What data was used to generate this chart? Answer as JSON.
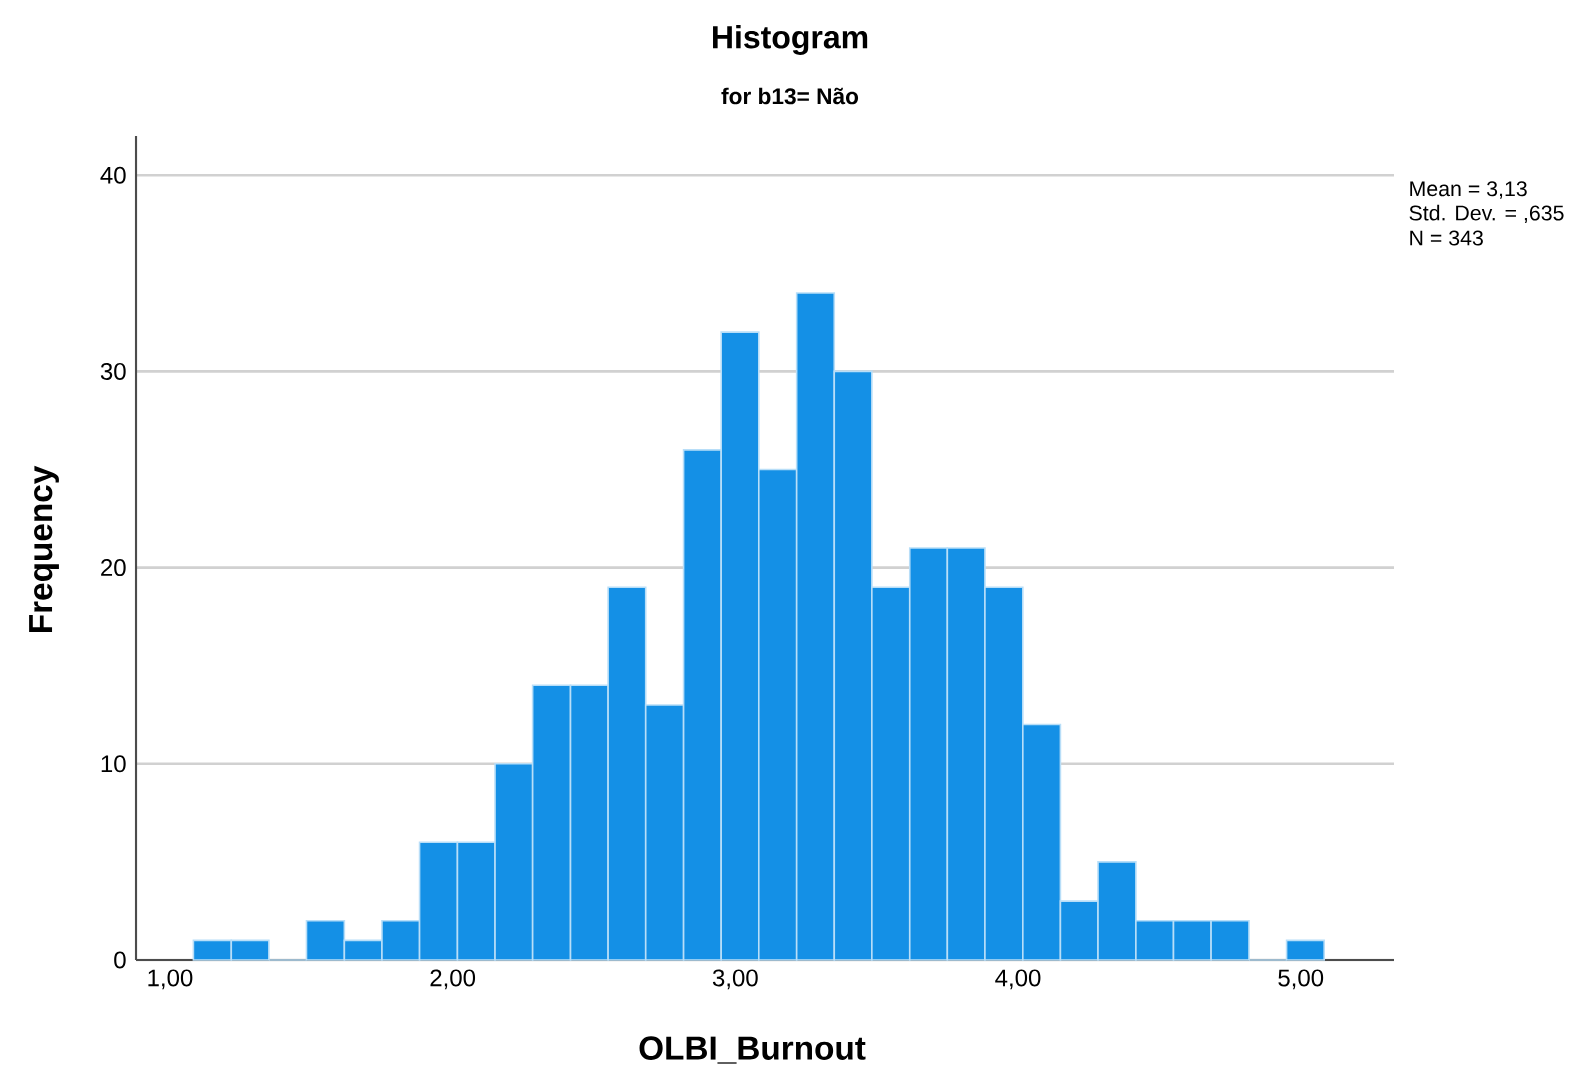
{
  "chart_data": {
    "type": "histogram",
    "title": "Histogram",
    "subtitle": "for b13= Não",
    "xlabel": "OLBI_Burnout",
    "ylabel": "Frequency",
    "annotations": [
      "Mean = 3,13",
      "Std. Dev. = ,635",
      "N = 343"
    ],
    "bins": [
      1.083,
      1.217,
      1.35,
      1.483,
      1.617,
      1.75,
      1.883,
      2.017,
      2.15,
      2.283,
      2.417,
      2.55,
      2.683,
      2.817,
      2.95,
      3.083,
      3.217,
      3.35,
      3.483,
      3.617,
      3.75,
      3.883,
      4.017,
      4.15,
      4.283,
      4.417,
      4.55,
      4.683,
      4.817,
      4.95,
      5.083
    ],
    "values": [
      1,
      1,
      0,
      2,
      1,
      2,
      6,
      6,
      10,
      14,
      14,
      19,
      13,
      26,
      32,
      25,
      34,
      30,
      19,
      21,
      21,
      19,
      12,
      3,
      5,
      2,
      2,
      2,
      0,
      1
    ],
    "color": "#1490e6",
    "xlim": [
      0.88,
      5.33
    ],
    "ylim": [
      0,
      42
    ],
    "xticks": [
      {
        "value": 1,
        "label": "1,00"
      },
      {
        "value": 2,
        "label": "2,00"
      },
      {
        "value": 3,
        "label": "3,00"
      },
      {
        "value": 4,
        "label": "4,00"
      },
      {
        "value": 5,
        "label": "5,00"
      }
    ],
    "yticks": [
      0,
      10,
      20,
      30,
      40
    ],
    "grid": "y"
  }
}
